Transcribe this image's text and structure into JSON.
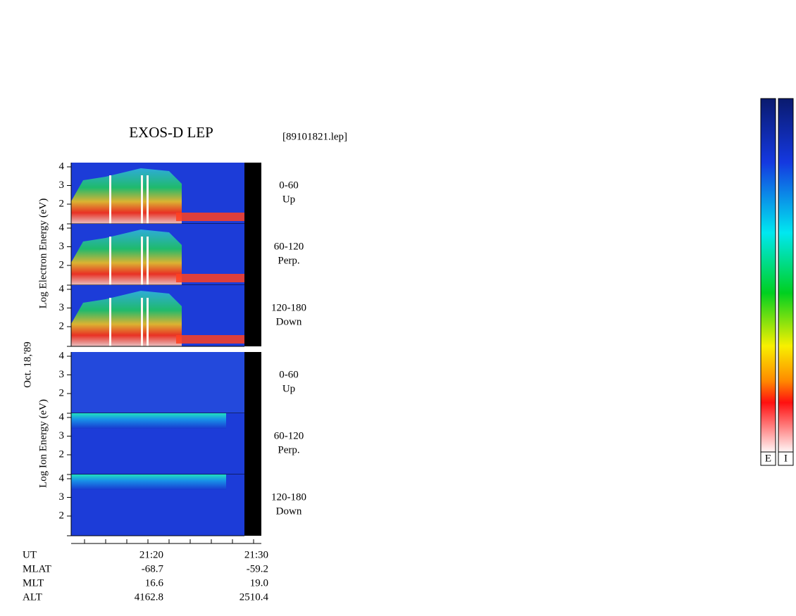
{
  "header": {
    "title": "EXOS-D LEP",
    "file": "[89101821.lep]"
  },
  "electron": {
    "axis_label": "Log  Electron  Energy (eV)",
    "panels": [
      {
        "range": "0-60",
        "direction": "Up",
        "ticks": [
          "4",
          "3",
          "2"
        ]
      },
      {
        "range": "60-120",
        "direction": "Perp.",
        "ticks": [
          "4",
          "3",
          "2"
        ]
      },
      {
        "range": "120-180",
        "direction": "Down",
        "ticks": [
          "4",
          "3",
          "2"
        ]
      }
    ]
  },
  "date": "Oct. 18,'89",
  "ion": {
    "axis_label": "Log  Ion  Energy (eV)",
    "panels": [
      {
        "range": "0-60",
        "direction": "Up",
        "ticks": [
          "4",
          "3",
          "2"
        ]
      },
      {
        "range": "60-120",
        "direction": "Perp.",
        "ticks": [
          "4",
          "3",
          "2"
        ]
      },
      {
        "range": "120-180",
        "direction": "Down",
        "ticks": [
          "4",
          "3",
          "2"
        ]
      }
    ]
  },
  "footer": {
    "rows": [
      {
        "name": "UT",
        "values": [
          "21:20",
          "21:30"
        ]
      },
      {
        "name": "MLAT",
        "values": [
          "-68.7",
          "-59.2"
        ]
      },
      {
        "name": "MLT",
        "values": [
          "16.6",
          "19.0"
        ]
      },
      {
        "name": "ALT",
        "values": [
          "4162.8",
          "2510.4"
        ]
      }
    ]
  },
  "color_bars": [
    "E",
    "I"
  ]
}
